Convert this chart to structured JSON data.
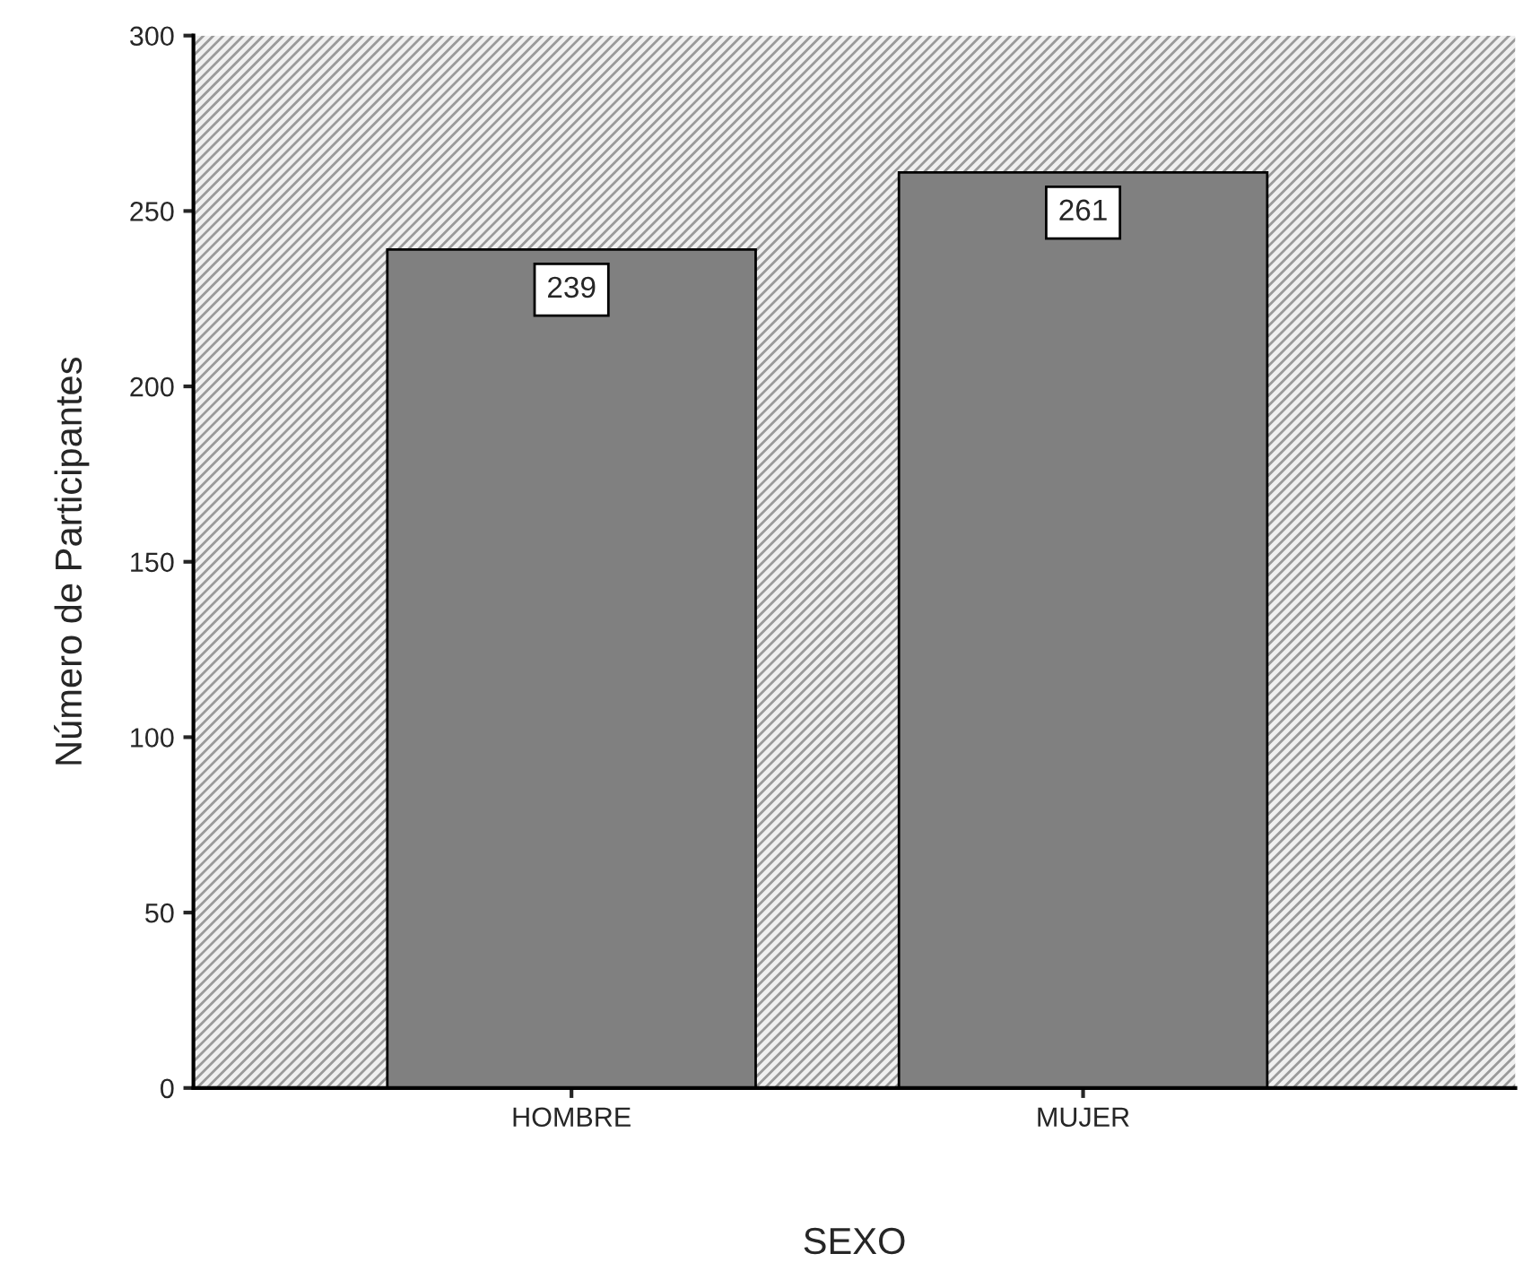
{
  "chart_data": {
    "type": "bar",
    "xlabel": "SEXO",
    "ylabel": "Número de Participantes",
    "categories": [
      "HOMBRE",
      "MUJER"
    ],
    "values": [
      239,
      261
    ],
    "color": "#808080",
    "ylim": [
      0,
      300
    ],
    "yticks": [
      0,
      50,
      100,
      150,
      200,
      250,
      300
    ],
    "data_labels": true,
    "grid": false
  }
}
